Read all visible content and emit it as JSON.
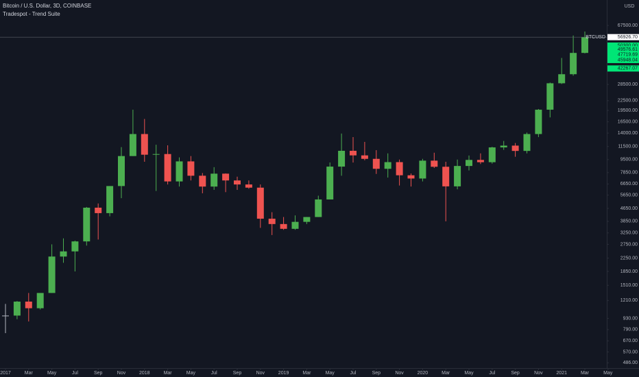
{
  "chart_data": {
    "type": "candlestick",
    "title": "Bitcoin / U.S. Dollar, 3D, COINBASE",
    "subtitle": "Tradespot - Trend Suite",
    "currency": "USD",
    "symbol": "BTCUSD",
    "log_scale": true,
    "up_color": "#4caf50",
    "down_color": "#ef5350",
    "flat_color": "#b2b5be",
    "categories": [
      "2017",
      null,
      "Mar",
      null,
      "May",
      null,
      "Jul",
      null,
      "Sep",
      null,
      "Nov",
      null,
      "2018",
      null,
      "Mar",
      null,
      "May",
      null,
      "Jul",
      null,
      "Sep",
      null,
      "Nov",
      null,
      "2019",
      null,
      "Mar",
      null,
      "May",
      null,
      "Jul",
      null,
      "Sep",
      null,
      "Nov",
      null,
      "2020",
      null,
      "Mar",
      null,
      "May",
      null,
      "Jul",
      null,
      "Sep",
      null,
      "Nov",
      null,
      "2021",
      null,
      "Mar",
      null,
      "May"
    ],
    "open": [
      970,
      970,
      1190,
      1080,
      1350,
      2300,
      2480,
      2870,
      4700,
      4340,
      6450,
      10000,
      13800,
      10200,
      10300,
      6900,
      9250,
      7500,
      6400,
      7730,
      7000,
      6600,
      6300,
      4000,
      3700,
      3450,
      3820,
      4100,
      5300,
      8570,
      10800,
      10100,
      9600,
      8300,
      9150,
      7550,
      7200,
      9350,
      8550,
      6420,
      8650,
      9450,
      9140,
      11350,
      11650,
      10780,
      13800,
      19700,
      29000,
      33100,
      45200,
      null,
      null
    ],
    "high": [
      1150,
      1200,
      1350,
      1350,
      2750,
      3000,
      2900,
      4750,
      5000,
      6450,
      11400,
      19700,
      17200,
      11800,
      11700,
      9800,
      10000,
      7800,
      8500,
      7760,
      7400,
      7000,
      6600,
      4400,
      4100,
      4200,
      4100,
      5600,
      9100,
      13900,
      13200,
      12300,
      10900,
      10400,
      9500,
      7750,
      9600,
      10500,
      9200,
      9500,
      10080,
      10400,
      11450,
      12470,
      12100,
      14100,
      19900,
      29300,
      42000,
      58300,
      61800,
      null,
      null
    ],
    "low": [
      750,
      920,
      890,
      1060,
      1350,
      2100,
      1850,
      2700,
      2950,
      4140,
      5400,
      10000,
      9200,
      6000,
      6600,
      6400,
      7000,
      5800,
      6100,
      5900,
      6100,
      6200,
      3500,
      3150,
      3400,
      3400,
      3700,
      4100,
      5300,
      7500,
      9100,
      9400,
      7700,
      7300,
      6500,
      6400,
      6900,
      8400,
      3850,
      6150,
      8100,
      8900,
      8950,
      10950,
      9900,
      10400,
      13200,
      17600,
      28700,
      32400,
      44900,
      null,
      null
    ],
    "close": [
      970,
      1190,
      1080,
      1350,
      2300,
      2480,
      2870,
      4700,
      4340,
      6450,
      10000,
      13800,
      10200,
      10300,
      6900,
      9250,
      7500,
      6400,
      7730,
      7000,
      6600,
      6300,
      4000,
      3700,
      3450,
      3820,
      4100,
      5300,
      8570,
      10800,
      10100,
      9600,
      8300,
      9150,
      7550,
      7200,
      9350,
      8550,
      6420,
      8650,
      9450,
      9140,
      11350,
      11650,
      10780,
      13800,
      19700,
      29000,
      33100,
      45200,
      56926.7,
      null,
      null
    ],
    "last_price": {
      "value": 56926.7,
      "label": "56926.70"
    },
    "indicator_levels": [
      {
        "value": 50300,
        "label": "50300.00"
      },
      {
        "value": 49576.61,
        "label": "49576.61"
      },
      {
        "value": 47719.69,
        "label": "47719.69"
      },
      {
        "value": 45948.04,
        "label": "45948.04"
      },
      {
        "value": 42267.07,
        "label": "42267.07"
      }
    ],
    "ylim": [
      450,
      98000
    ],
    "yticks": [
      {
        "value": 67500,
        "label": "67500.00"
      },
      {
        "value": 28500,
        "label": "28500.00"
      },
      {
        "value": 22500,
        "label": "22500.00"
      },
      {
        "value": 19500,
        "label": "19500.00"
      },
      {
        "value": 16500,
        "label": "16500.00"
      },
      {
        "value": 14000,
        "label": "14000.00"
      },
      {
        "value": 11500,
        "label": "11500.00"
      },
      {
        "value": 9500,
        "label": "9500.00"
      },
      {
        "value": 7850,
        "label": "7850.00"
      },
      {
        "value": 6650,
        "label": "6650.00"
      },
      {
        "value": 5650,
        "label": "5650.00"
      },
      {
        "value": 4650,
        "label": "4650.00"
      },
      {
        "value": 3850,
        "label": "3850.00"
      },
      {
        "value": 3250,
        "label": "3250.00"
      },
      {
        "value": 2750,
        "label": "2750.00"
      },
      {
        "value": 2250,
        "label": "2250.00"
      },
      {
        "value": 1850,
        "label": "1850.00"
      },
      {
        "value": 1510,
        "label": "1510.00"
      },
      {
        "value": 1210,
        "label": "1210.00"
      },
      {
        "value": 930,
        "label": "930.00"
      },
      {
        "value": 790,
        "label": "790.00"
      },
      {
        "value": 670,
        "label": "670.00"
      },
      {
        "value": 570,
        "label": "570.00"
      },
      {
        "value": 486,
        "label": "486.00"
      }
    ]
  }
}
